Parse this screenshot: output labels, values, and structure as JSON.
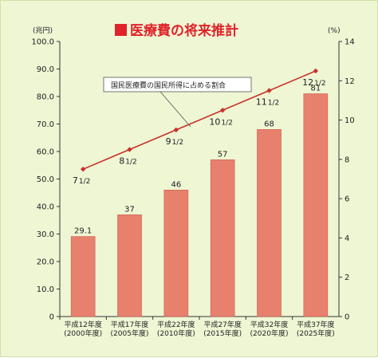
{
  "chart_data": {
    "type": "bar",
    "title": "医療費の将来推計",
    "left_axis": {
      "unit": "(兆円)",
      "ylim": [
        0,
        100
      ],
      "ticks": [
        "0",
        "10.0",
        "20.0",
        "30.0",
        "40.0",
        "50.0",
        "60.0",
        "70.0",
        "80.0",
        "90.0",
        "100.0"
      ]
    },
    "right_axis": {
      "unit": "(%)",
      "ylim": [
        0,
        14
      ],
      "ticks": [
        "0",
        "2",
        "4",
        "6",
        "8",
        "10",
        "12",
        "14"
      ]
    },
    "categories": [
      {
        "line1": "平成12年度",
        "line2": "(2000年度)"
      },
      {
        "line1": "平成17年度",
        "line2": "(2005年度)"
      },
      {
        "line1": "平成22年度",
        "line2": "(2010年度)"
      },
      {
        "line1": "平成27年度",
        "line2": "(2015年度)"
      },
      {
        "line1": "平成32年度",
        "line2": "(2020年度)"
      },
      {
        "line1": "平成37年度",
        "line2": "(2025年度)"
      }
    ],
    "bar_series": {
      "values": [
        29.1,
        37,
        46,
        57,
        68,
        81
      ],
      "labels": [
        "29.1",
        "37",
        "46",
        "57",
        "68",
        "81"
      ]
    },
    "line_series": {
      "name": "国民医療費の国民所得に占める割合",
      "values": [
        7.5,
        8.5,
        9.5,
        10.5,
        11.5,
        12.5
      ],
      "label_whole": [
        "7",
        "8",
        "9",
        "10",
        "11",
        "12"
      ],
      "label_fraction": "1/2"
    },
    "grid": false,
    "colors": {
      "bar": "#e8806e",
      "bar_edge": "#c95e4e",
      "line": "#c8322a",
      "title": "#e0232a",
      "background": "#eef6d4"
    }
  }
}
